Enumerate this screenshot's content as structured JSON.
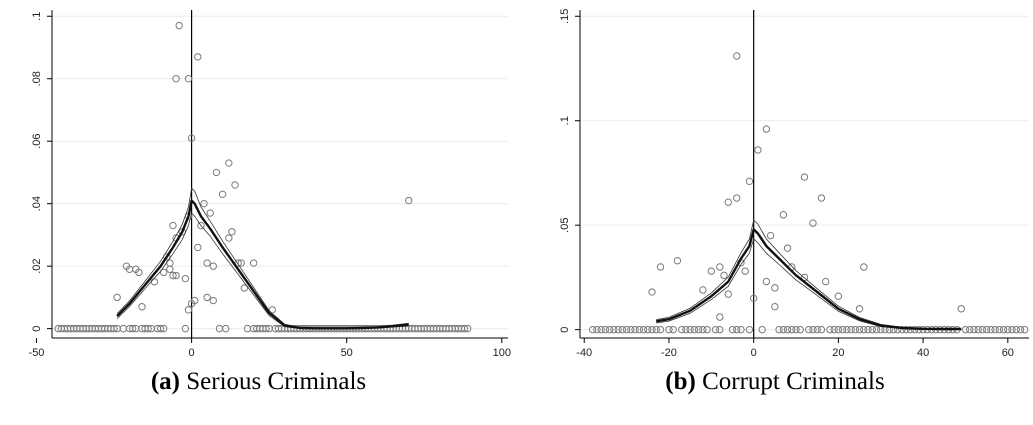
{
  "colors": {
    "curve": "#111111",
    "band": "#333333",
    "marker": "#7a7a7a",
    "grid": "#ececec",
    "axis": "#000000"
  },
  "chart_data": [
    {
      "type": "scatter",
      "panel_label": "(a)",
      "caption": "Serious Criminals",
      "title": "",
      "xlabel": "",
      "ylabel": "",
      "xlim": [
        -45,
        102
      ],
      "ylim": [
        -0.003,
        0.102
      ],
      "xticks": [
        -50,
        0,
        50,
        100
      ],
      "xtick_labels": [
        "-50",
        "0",
        "50",
        "100"
      ],
      "yticks": [
        0,
        0.02,
        0.04,
        0.06,
        0.08,
        0.1
      ],
      "ytick_labels": [
        "0",
        ".02",
        ".04",
        ".06",
        ".08",
        ".1"
      ],
      "grid": "horizontal",
      "vline_x": 0,
      "points": [
        [
          -4,
          0.097
        ],
        [
          -5,
          0.08
        ],
        [
          -1,
          0.08
        ],
        [
          2,
          0.087
        ],
        [
          0,
          0.061
        ],
        [
          12,
          0.053
        ],
        [
          8,
          0.05
        ],
        [
          14,
          0.046
        ],
        [
          10,
          0.043
        ],
        [
          4,
          0.04
        ],
        [
          6,
          0.037
        ],
        [
          13,
          0.031
        ],
        [
          12,
          0.029
        ],
        [
          -6,
          0.033
        ],
        [
          -5,
          0.029
        ],
        [
          -8,
          0.023
        ],
        [
          -7,
          0.021
        ],
        [
          -7,
          0.019
        ],
        [
          -6,
          0.017
        ],
        [
          -5,
          0.017
        ],
        [
          -2,
          0.016
        ],
        [
          -21,
          0.02
        ],
        [
          -20,
          0.019
        ],
        [
          -18,
          0.019
        ],
        [
          -17,
          0.018
        ],
        [
          -12,
          0.015
        ],
        [
          -9,
          0.018
        ],
        [
          -16,
          0.007
        ],
        [
          -24,
          0.01
        ],
        [
          5,
          0.021
        ],
        [
          7,
          0.02
        ],
        [
          15,
          0.021
        ],
        [
          16,
          0.021
        ],
        [
          20,
          0.021
        ],
        [
          5,
          0.01
        ],
        [
          7,
          0.009
        ],
        [
          1,
          0.009
        ],
        [
          0,
          0.008
        ],
        [
          -1,
          0.006
        ],
        [
          -2,
          0.0
        ],
        [
          9,
          0.0
        ],
        [
          11,
          0.0
        ],
        [
          26,
          0.006
        ],
        [
          17,
          0.013
        ],
        [
          70,
          0.041
        ],
        [
          2,
          0.026
        ],
        [
          3,
          0.033
        ],
        [
          -3,
          0.031
        ],
        [
          -1,
          0.036
        ]
      ],
      "zero_points_x": [
        -43,
        -42,
        -41,
        -40,
        -39,
        -38,
        -37,
        -36,
        -35,
        -34,
        -33,
        -32,
        -31,
        -30,
        -29,
        -28,
        -27,
        -26,
        -25,
        -24,
        -22,
        -20,
        -19,
        -18,
        -16,
        -15,
        -14,
        -13,
        -11,
        -10,
        -9,
        18,
        20,
        21,
        22,
        23,
        24,
        25,
        27,
        28,
        29,
        30,
        31,
        32,
        33,
        34,
        35,
        36,
        37,
        38,
        39,
        40,
        41,
        42,
        43,
        44,
        45,
        46,
        47,
        48,
        49,
        50,
        51,
        52,
        53,
        54,
        55,
        56,
        57,
        58,
        59,
        60,
        61,
        62,
        63,
        64,
        65,
        66,
        67,
        68,
        69,
        70,
        71,
        72,
        73,
        74,
        75,
        76,
        77,
        78,
        79,
        80,
        81,
        82,
        83,
        84,
        85,
        86,
        87,
        88,
        89
      ],
      "fit": {
        "x": [
          -24,
          -20,
          -15,
          -10,
          -6,
          -3,
          -1,
          0,
          1,
          3,
          6,
          10,
          15,
          20,
          25,
          30,
          35,
          40,
          45,
          50,
          55,
          60,
          65,
          70
        ],
        "y": [
          0.004,
          0.008,
          0.014,
          0.02,
          0.026,
          0.031,
          0.036,
          0.041,
          0.04,
          0.036,
          0.032,
          0.026,
          0.019,
          0.012,
          0.005,
          0.001,
          0.0002,
          0.0001,
          0.0001,
          0.0001,
          0.0002,
          0.0004,
          0.0008,
          0.0013
        ],
        "band": [
          0.0008,
          0.0009,
          0.0012,
          0.0016,
          0.002,
          0.0024,
          0.003,
          0.004,
          0.004,
          0.003,
          0.0024,
          0.002,
          0.0016,
          0.0012,
          0.0008,
          0.0004,
          0.0002,
          0.0001,
          0.0001,
          0.0001,
          0.0001,
          0.0002,
          0.0003,
          0.0004
        ]
      }
    },
    {
      "type": "scatter",
      "panel_label": "(b)",
      "caption": "Corrupt Criminals",
      "title": "",
      "xlabel": "",
      "ylabel": "",
      "xlim": [
        -41,
        65
      ],
      "ylim": [
        -0.004,
        0.153
      ],
      "xticks": [
        -40,
        -20,
        0,
        20,
        40,
        60
      ],
      "xtick_labels": [
        "-40",
        "-20",
        "0",
        "20",
        "40",
        "60"
      ],
      "yticks": [
        0,
        0.05,
        0.1,
        0.15
      ],
      "ytick_labels": [
        "0",
        ".05",
        ".1",
        ".15"
      ],
      "grid": "horizontal",
      "vline_x": 0,
      "points": [
        [
          -4,
          0.131
        ],
        [
          3,
          0.096
        ],
        [
          1,
          0.086
        ],
        [
          12,
          0.073
        ],
        [
          -1,
          0.071
        ],
        [
          16,
          0.063
        ],
        [
          -4,
          0.063
        ],
        [
          -6,
          0.061
        ],
        [
          7,
          0.055
        ],
        [
          14,
          0.051
        ],
        [
          4,
          0.045
        ],
        [
          -3,
          0.032
        ],
        [
          -2,
          0.028
        ],
        [
          -8,
          0.03
        ],
        [
          -10,
          0.028
        ],
        [
          -7,
          0.026
        ],
        [
          -22,
          0.03
        ],
        [
          -18,
          0.033
        ],
        [
          -24,
          0.018
        ],
        [
          -12,
          0.019
        ],
        [
          -6,
          0.017
        ],
        [
          -8,
          0.006
        ],
        [
          0,
          0.015
        ],
        [
          8,
          0.039
        ],
        [
          9,
          0.03
        ],
        [
          12,
          0.025
        ],
        [
          17,
          0.023
        ],
        [
          20,
          0.016
        ],
        [
          26,
          0.03
        ],
        [
          25,
          0.01
        ],
        [
          3,
          0.023
        ],
        [
          5,
          0.02
        ],
        [
          5,
          0.011
        ],
        [
          49,
          0.01
        ],
        [
          -3,
          0.0
        ],
        [
          -1,
          0.0
        ],
        [
          6,
          0.0
        ]
      ],
      "zero_points_x": [
        -38,
        -37,
        -36,
        -35,
        -34,
        -33,
        -32,
        -31,
        -30,
        -29,
        -28,
        -27,
        -26,
        -25,
        -24,
        -23,
        -22,
        -20,
        -19,
        -17,
        -16,
        -15,
        -14,
        -13,
        -12,
        -11,
        -9,
        -8,
        -5,
        -4,
        2,
        7,
        8,
        9,
        10,
        11,
        13,
        14,
        15,
        16,
        18,
        19,
        20,
        21,
        22,
        23,
        24,
        25,
        26,
        27,
        28,
        29,
        30,
        31,
        32,
        33,
        34,
        35,
        36,
        37,
        38,
        39,
        40,
        41,
        42,
        43,
        44,
        45,
        46,
        47,
        48,
        50,
        51,
        52,
        53,
        54,
        55,
        56,
        57,
        58,
        59,
        60,
        61,
        62,
        63,
        64
      ],
      "fit": {
        "x": [
          -23,
          -20,
          -15,
          -10,
          -6,
          -3,
          -1,
          0,
          1,
          3,
          6,
          10,
          15,
          20,
          25,
          30,
          35,
          40,
          45,
          49
        ],
        "y": [
          0.004,
          0.005,
          0.009,
          0.016,
          0.023,
          0.034,
          0.04,
          0.048,
          0.046,
          0.04,
          0.034,
          0.026,
          0.018,
          0.01,
          0.005,
          0.002,
          0.0008,
          0.0004,
          0.0003,
          0.0003
        ],
        "band": [
          0.0008,
          0.0009,
          0.0012,
          0.0016,
          0.0022,
          0.0028,
          0.0034,
          0.0045,
          0.0045,
          0.0034,
          0.0028,
          0.0022,
          0.0016,
          0.0012,
          0.0008,
          0.0005,
          0.0003,
          0.0002,
          0.0002,
          0.0002
        ]
      }
    }
  ]
}
